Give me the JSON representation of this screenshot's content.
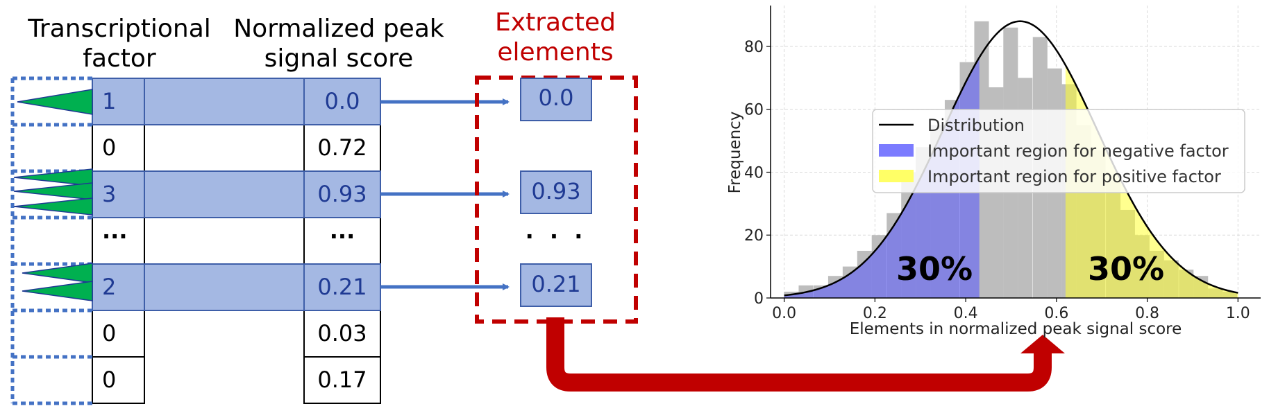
{
  "headers": {
    "tf": [
      "Transcriptional",
      "factor"
    ],
    "score": [
      "Normalized peak",
      "signal score"
    ],
    "extracted": [
      "Extracted",
      "elements"
    ]
  },
  "rows": [
    {
      "tf": "1",
      "score": "0.0",
      "highlighted": true,
      "peaks": 1
    },
    {
      "tf": "0",
      "score": "0.72",
      "highlighted": false,
      "peaks": 0
    },
    {
      "tf": "3",
      "score": "0.93",
      "highlighted": true,
      "peaks": 3
    },
    {
      "tf": "···",
      "score": "···",
      "highlighted": false,
      "peaks": 0
    },
    {
      "tf": "2",
      "score": "0.21",
      "highlighted": true,
      "peaks": 2
    },
    {
      "tf": "0",
      "score": "0.03",
      "highlighted": false,
      "peaks": 0
    },
    {
      "tf": "0",
      "score": "0.17",
      "highlighted": false,
      "peaks": 0
    }
  ],
  "extracted": [
    "0.0",
    "0.93",
    "· · ·",
    "0.21"
  ],
  "colors": {
    "highlight": "#a4b8e3",
    "border": "#3e5ea8",
    "arrow": "#4472c4",
    "peak": "#00b050",
    "red": "#c00000",
    "hist_gray": "#bdbdbd",
    "neg_region": "#7b7bff",
    "pos_region": "#ffff66"
  },
  "chart_data": {
    "type": "bar",
    "xlabel": "Elements in normalized peak signal score",
    "ylabel": "Frequency",
    "xlim": [
      -0.03,
      1.05
    ],
    "ylim": [
      0,
      93
    ],
    "xticks": [
      "0.0",
      "0.2",
      "0.4",
      "0.6",
      "0.8",
      "1.0"
    ],
    "yticks": [
      "0",
      "20",
      "40",
      "60",
      "80"
    ],
    "grid": true,
    "bin_width": 0.0322,
    "x": [
      0.016,
      0.048,
      0.081,
      0.113,
      0.145,
      0.177,
      0.209,
      0.242,
      0.274,
      0.306,
      0.338,
      0.37,
      0.403,
      0.435,
      0.467,
      0.499,
      0.531,
      0.564,
      0.596,
      0.628,
      0.66,
      0.692,
      0.725,
      0.757,
      0.789,
      0.821,
      0.853,
      0.886,
      0.918,
      0.95,
      0.982
    ],
    "values": [
      2,
      4,
      4,
      7,
      10,
      15,
      20,
      27,
      40,
      48,
      55,
      63,
      75,
      88,
      67,
      86,
      70,
      83,
      73,
      68,
      55,
      47,
      37,
      28,
      20,
      15,
      12,
      9,
      7,
      3,
      2
    ],
    "distribution": {
      "mean": 0.52,
      "sd": 0.17,
      "peak": 88
    },
    "regions": [
      {
        "name": "Important region for negative factor",
        "from": 0.0,
        "to": 0.43
      },
      {
        "name": "Important region for positive factor",
        "from": 0.62,
        "to": 1.0
      }
    ],
    "legend": [
      "Distribution",
      "Important region for negative factor",
      "Important region for positive factor"
    ],
    "legend_position": "center-right",
    "annotations": [
      "30%",
      "30%"
    ]
  }
}
